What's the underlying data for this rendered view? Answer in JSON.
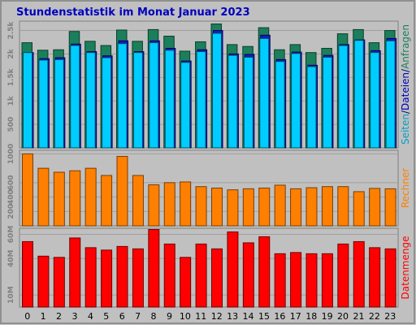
{
  "title": "Stundenstatistik im Monat Januar 2023",
  "colors": {
    "background": "#C0C0C0",
    "frame": "#909090",
    "title": "#0000C0",
    "anfragen": "#1B7F5B",
    "dateien": "#1A1AC0",
    "seiten": "#00CCFF",
    "rechner": "#FF8000",
    "datenmenge": "#FF0000",
    "tick_label": "#808080"
  },
  "chart_data": [
    {
      "type": "bar",
      "name": "requests",
      "categories": [
        "0",
        "1",
        "2",
        "3",
        "4",
        "5",
        "6",
        "7",
        "8",
        "9",
        "10",
        "11",
        "12",
        "13",
        "14",
        "15",
        "16",
        "17",
        "18",
        "19",
        "20",
        "21",
        "22",
        "23"
      ],
      "ylabel_parts": [
        {
          "text": "Seiten",
          "color": "#00A0C8"
        },
        {
          "text": "/",
          "color": "#000080"
        },
        {
          "text": "Dateien",
          "color": "#0000C0"
        },
        {
          "text": "/",
          "color": "#000080"
        },
        {
          "text": "Anfragen",
          "color": "#1B7F5B"
        }
      ],
      "yticks": [
        "500",
        "1k",
        "1.5k",
        "2k",
        "2.5k"
      ],
      "ytick_values": [
        500,
        1000,
        1500,
        2000,
        2500
      ],
      "ylim": [
        0,
        2700
      ],
      "series": [
        {
          "name": "Anfragen",
          "values": [
            2240,
            2080,
            2090,
            2480,
            2270,
            2180,
            2510,
            2270,
            2520,
            2380,
            2060,
            2260,
            2640,
            2200,
            2160,
            2560,
            2090,
            2200,
            2030,
            2120,
            2430,
            2520,
            2240,
            2500
          ]
        },
        {
          "name": "Dateien",
          "values": [
            2030,
            1900,
            1920,
            2210,
            2050,
            1960,
            2280,
            2050,
            2280,
            2120,
            1850,
            2090,
            2500,
            2000,
            1990,
            2400,
            1880,
            2040,
            1760,
            1970,
            2200,
            2300,
            2070,
            2330
          ]
        },
        {
          "name": "Seiten",
          "values": [
            2030,
            1870,
            1880,
            2180,
            2030,
            1920,
            2220,
            2030,
            2240,
            2080,
            1820,
            2050,
            2440,
            1970,
            1930,
            2330,
            1840,
            2010,
            1730,
            1930,
            2180,
            2290,
            2030,
            2280
          ]
        }
      ]
    },
    {
      "type": "bar",
      "name": "hosts",
      "categories": [
        "0",
        "1",
        "2",
        "3",
        "4",
        "5",
        "6",
        "7",
        "8",
        "9",
        "10",
        "11",
        "12",
        "13",
        "14",
        "15",
        "16",
        "17",
        "18",
        "19",
        "20",
        "21",
        "22",
        "23"
      ],
      "ylabel_parts": [
        {
          "text": "Rechner",
          "color": "#FF8000"
        }
      ],
      "yticks": [
        "200",
        "400",
        "600",
        "1000"
      ],
      "ytick_values": [
        200,
        400,
        600,
        1000
      ],
      "ylim": [
        0,
        1050
      ],
      "series": [
        {
          "name": "Rechner",
          "values": [
            1000,
            800,
            745,
            765,
            800,
            700,
            965,
            700,
            570,
            600,
            610,
            545,
            525,
            500,
            515,
            525,
            565,
            515,
            530,
            545,
            545,
            475,
            520,
            515
          ]
        }
      ]
    },
    {
      "type": "bar",
      "name": "volume",
      "categories": [
        "0",
        "1",
        "2",
        "3",
        "4",
        "5",
        "6",
        "7",
        "8",
        "9",
        "10",
        "11",
        "12",
        "13",
        "14",
        "15",
        "16",
        "17",
        "18",
        "19",
        "20",
        "21",
        "22",
        "23"
      ],
      "ylabel_parts": [
        {
          "text": "Datenmenge",
          "color": "#FF0000"
        }
      ],
      "yticks": [
        "10M",
        "40M",
        "60M"
      ],
      "ytick_values": [
        10,
        40,
        60
      ],
      "ylim": [
        0,
        65
      ],
      "series": [
        {
          "name": "Datenmenge",
          "values": [
            54,
            42,
            41,
            57,
            49,
            47,
            50,
            48,
            64,
            52,
            41,
            52,
            48,
            62,
            53,
            58,
            44,
            45,
            44,
            44,
            52,
            54,
            49,
            48
          ]
        }
      ]
    }
  ]
}
